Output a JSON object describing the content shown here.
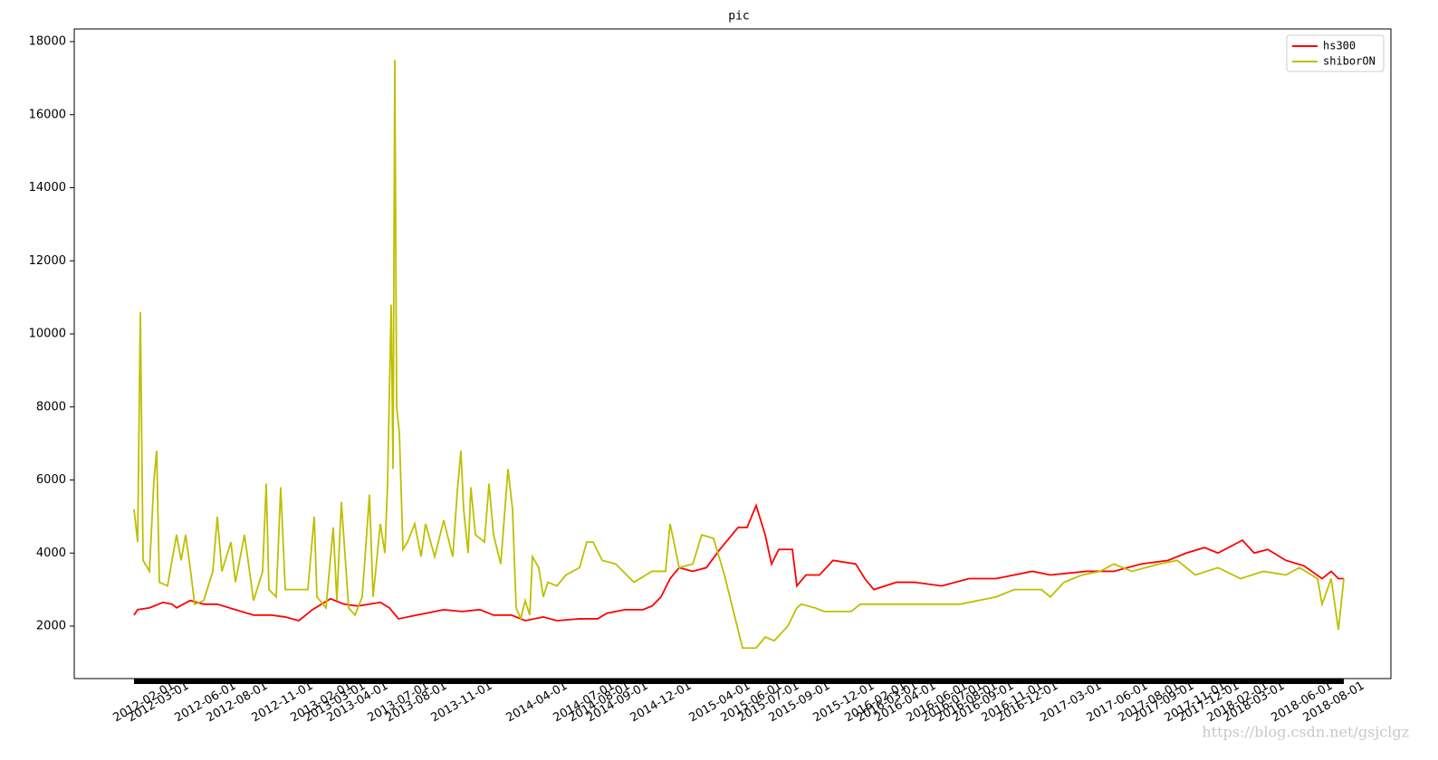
{
  "chart_data": {
    "type": "line",
    "title": "pic",
    "legend": "upper right",
    "xlim": [
      -66,
      1388
    ],
    "ylim": [
      564,
      18347
    ],
    "yticks": [
      2000,
      4000,
      6000,
      8000,
      10000,
      12000,
      14000,
      16000,
      18000
    ],
    "xticks": [
      {
        "value": 11,
        "label": "2012-02-01"
      },
      {
        "value": 27,
        "label": "2012-03-01"
      },
      {
        "value": 79,
        "label": "2012-06-01"
      },
      {
        "value": 114,
        "label": "2012-08-01"
      },
      {
        "value": 164,
        "label": "2012-11-01"
      },
      {
        "value": 207,
        "label": "2013-02-01"
      },
      {
        "value": 222,
        "label": "2013-03-01"
      },
      {
        "value": 247,
        "label": "2013-04-01"
      },
      {
        "value": 292,
        "label": "2013-07-01"
      },
      {
        "value": 312,
        "label": "2013-08-01"
      },
      {
        "value": 362,
        "label": "2013-11-01"
      },
      {
        "value": 445,
        "label": "2014-04-01"
      },
      {
        "value": 497,
        "label": "2014-07-01"
      },
      {
        "value": 514,
        "label": "2014-08-01"
      },
      {
        "value": 534,
        "label": "2014-09-01"
      },
      {
        "value": 582,
        "label": "2014-12-01"
      },
      {
        "value": 647,
        "label": "2015-04-01"
      },
      {
        "value": 682,
        "label": "2015-06-01"
      },
      {
        "value": 701,
        "label": "2015-07-01"
      },
      {
        "value": 735,
        "label": "2015-09-01"
      },
      {
        "value": 784,
        "label": "2015-12-01"
      },
      {
        "value": 819,
        "label": "2016-02-01"
      },
      {
        "value": 832,
        "label": "2016-03-01"
      },
      {
        "value": 852,
        "label": "2016-04-01"
      },
      {
        "value": 887,
        "label": "2016-06-01"
      },
      {
        "value": 904,
        "label": "2016-07-01"
      },
      {
        "value": 920,
        "label": "2016-08-01"
      },
      {
        "value": 938,
        "label": "2016-09-01"
      },
      {
        "value": 970,
        "label": "2016-11-01"
      },
      {
        "value": 987,
        "label": "2016-12-01"
      },
      {
        "value": 1035,
        "label": "2017-03-01"
      },
      {
        "value": 1086,
        "label": "2017-06-01"
      },
      {
        "value": 1121,
        "label": "2017-08-01"
      },
      {
        "value": 1137,
        "label": "2017-09-01"
      },
      {
        "value": 1172,
        "label": "2017-11-01"
      },
      {
        "value": 1187,
        "label": "2017-12-01"
      },
      {
        "value": 1219,
        "label": "2018-02-01"
      },
      {
        "value": 1237,
        "label": "2018-03-01"
      },
      {
        "value": 1290,
        "label": "2018-06-01"
      },
      {
        "value": 1325,
        "label": "2018-08-01"
      }
    ],
    "series": [
      {
        "name": "hs300",
        "color": "#ff0000",
        "x": [
          0,
          4,
          17,
          32,
          42,
          47,
          62,
          77,
          92,
          112,
          132,
          152,
          167,
          182,
          197,
          217,
          232,
          247,
          272,
          282,
          292,
          312,
          342,
          362,
          382,
          397,
          417,
          432,
          452,
          467,
          492,
          512,
          522,
          542,
          562,
          572,
          582,
          592,
          602,
          617,
          632,
          647,
          667,
          677,
          687,
          697,
          704,
          712,
          727,
          732,
          742,
          757,
          772,
          797,
          807,
          817,
          842,
          862,
          892,
          922,
          952,
          992,
          1012,
          1052,
          1082,
          1112,
          1142,
          1162,
          1182,
          1197,
          1224,
          1237,
          1252,
          1272,
          1292,
          1312,
          1322,
          1330,
          1336
        ],
        "values": [
          2300,
          2450,
          2500,
          2650,
          2600,
          2500,
          2700,
          2600,
          2600,
          2450,
          2300,
          2300,
          2250,
          2150,
          2450,
          2750,
          2600,
          2550,
          2650,
          2500,
          2200,
          2300,
          2450,
          2400,
          2450,
          2300,
          2300,
          2150,
          2250,
          2150,
          2200,
          2200,
          2350,
          2450,
          2450,
          2550,
          2800,
          3300,
          3600,
          3500,
          3600,
          4100,
          4700,
          4700,
          5300,
          4500,
          3700,
          4100,
          4100,
          3100,
          3400,
          3400,
          3800,
          3700,
          3300,
          3000,
          3200,
          3200,
          3100,
          3300,
          3300,
          3500,
          3400,
          3500,
          3500,
          3700,
          3800,
          4000,
          4150,
          4000,
          4350,
          4000,
          4100,
          3800,
          3650,
          3300,
          3500,
          3300,
          3300
        ]
      },
      {
        "name": "shiborON",
        "color": "#bfbf00",
        "x": [
          0,
          4,
          7,
          10,
          17,
          22,
          25,
          28,
          37,
          47,
          52,
          57,
          62,
          67,
          77,
          87,
          92,
          97,
          107,
          112,
          122,
          132,
          142,
          146,
          149,
          157,
          162,
          167,
          182,
          192,
          199,
          202,
          212,
          220,
          224,
          229,
          237,
          244,
          252,
          260,
          264,
          272,
          277,
          280,
          284,
          286,
          288,
          290,
          293,
          297,
          302,
          310,
          317,
          322,
          332,
          342,
          352,
          357,
          361,
          364,
          369,
          372,
          377,
          387,
          392,
          397,
          405,
          409,
          413,
          418,
          422,
          427,
          432,
          437,
          440,
          447,
          452,
          457,
          467,
          477,
          492,
          500,
          507,
          517,
          532,
          552,
          572,
          587,
          592,
          602,
          617,
          627,
          640,
          652,
          662,
          672,
          687,
          697,
          707,
          722,
          732,
          737,
          752,
          762,
          792,
          802,
          832,
          852,
          912,
          952,
          972,
          1002,
          1012,
          1027,
          1047,
          1067,
          1082,
          1102,
          1132,
          1152,
          1172,
          1197,
          1222,
          1247,
          1272,
          1287,
          1307,
          1312,
          1322,
          1330,
          1336
        ],
        "values": [
          5200,
          4300,
          10600,
          3800,
          3500,
          6000,
          6800,
          3200,
          3100,
          4500,
          3800,
          4500,
          3600,
          2600,
          2700,
          3500,
          5000,
          3500,
          4300,
          3200,
          4500,
          2700,
          3500,
          5900,
          3000,
          2800,
          5800,
          3000,
          3000,
          3000,
          5000,
          2800,
          2500,
          4700,
          2700,
          5400,
          2500,
          2300,
          2800,
          5600,
          2800,
          4800,
          4000,
          5900,
          10800,
          6300,
          17500,
          8000,
          7300,
          4100,
          4300,
          4800,
          3900,
          4800,
          3900,
          4900,
          3900,
          5700,
          6800,
          5200,
          4000,
          5800,
          4500,
          4300,
          5900,
          4500,
          3700,
          5000,
          6300,
          5200,
          2500,
          2200,
          2700,
          2300,
          3900,
          3600,
          2800,
          3200,
          3100,
          3400,
          3600,
          4300,
          4300,
          3800,
          3700,
          3200,
          3500,
          3500,
          4800,
          3600,
          3700,
          4500,
          4400,
          3400,
          2400,
          1400,
          1400,
          1700,
          1600,
          2000,
          2500,
          2600,
          2500,
          2400,
          2400,
          2600,
          2600,
          2600,
          2600,
          2800,
          3000,
          3000,
          2800,
          3200,
          3400,
          3500,
          3700,
          3500,
          3700,
          3800,
          3400,
          3600,
          3300,
          3500,
          3400,
          3600,
          3300,
          2600,
          3300,
          1900,
          3300
        ]
      }
    ],
    "watermark": "https://blog.csdn.net/gsjclgz"
  }
}
